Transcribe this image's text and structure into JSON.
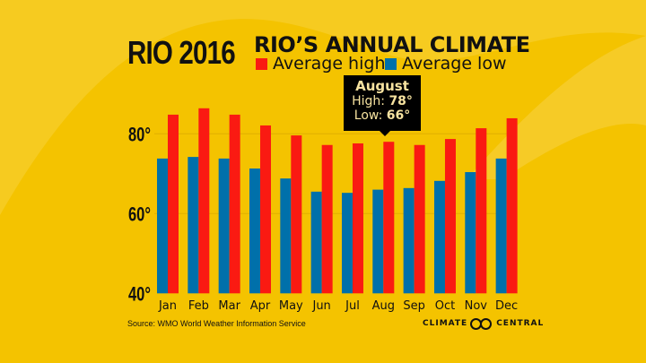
{
  "header": {
    "logo_text": "RIO 2016",
    "title": "RIO’S ANNUAL CLIMATE",
    "legend": [
      {
        "label": "Average high",
        "color": "#FA1A12"
      },
      {
        "label": "Average low",
        "color": "#0070AA"
      }
    ]
  },
  "tooltip": {
    "month": "August",
    "high_label": "High:",
    "high_value": "78°",
    "low_label": "Low:",
    "low_value": "66°"
  },
  "footer": {
    "source": "Source: WMO World Weather Information Service",
    "brand_left": "CLIMATE",
    "brand_right": "CENTRAL"
  },
  "chart_data": {
    "type": "bar",
    "title": "RIO’S ANNUAL CLIMATE",
    "xlabel": "",
    "ylabel": "",
    "categories": [
      "Jan",
      "Feb",
      "Mar",
      "Apr",
      "May",
      "Jun",
      "Jul",
      "Aug",
      "Sep",
      "Oct",
      "Nov",
      "Dec"
    ],
    "series": [
      {
        "name": "Average low",
        "color": "#0070AA",
        "values": [
          73.8,
          74.2,
          73.8,
          71.3,
          68.8,
          65.5,
          65.2,
          66,
          66.4,
          68.2,
          70.4,
          73.8
        ]
      },
      {
        "name": "Average high",
        "color": "#FA1A12",
        "values": [
          84.8,
          86.4,
          84.8,
          82.1,
          79.6,
          77.2,
          77.6,
          78,
          77.2,
          78.7,
          81.4,
          83.9
        ]
      }
    ],
    "ylim": [
      40,
      90
    ],
    "yticks": [
      {
        "v": 40,
        "label": "40°"
      },
      {
        "v": 60,
        "label": "60°"
      },
      {
        "v": 80,
        "label": "80°"
      }
    ],
    "grid": true,
    "legend_position": "top"
  }
}
